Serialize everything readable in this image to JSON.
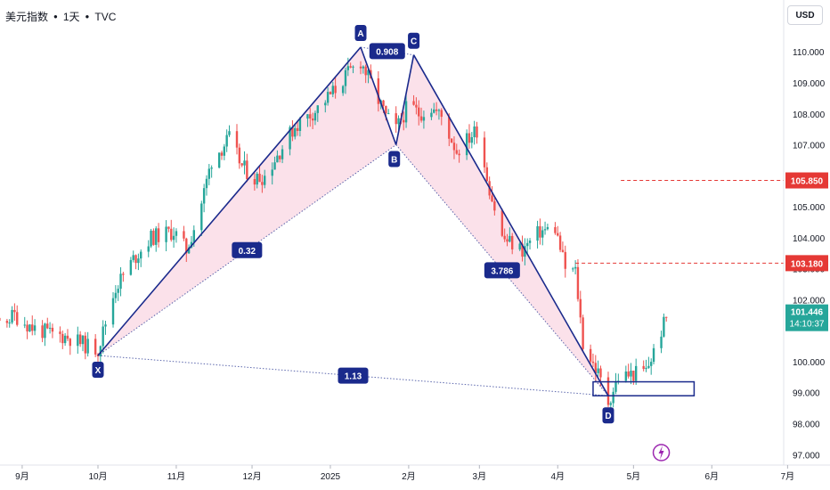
{
  "header": {
    "symbol": "美元指数",
    "interval": "1天",
    "source": "TVC"
  },
  "currency": "USD",
  "colors": {
    "up": "#26a69a",
    "down": "#ef5350",
    "pattern_line": "#1a2a8c",
    "pattern_fill": "#f8c8d8",
    "level": "#e53935",
    "label_bg": "#1a2a8c",
    "event": "#9c27b0"
  },
  "chart_data": {
    "type": "candlestick",
    "price_axis": {
      "ticks": [
        110.0,
        109.0,
        108.0,
        107.0,
        106.0,
        105.0,
        104.0,
        103.0,
        102.0,
        100.0,
        99.0,
        98.0,
        97.0
      ],
      "tick_labels": [
        "110.000",
        "109.000",
        "108.000",
        "107.000",
        "106.000",
        "105.000",
        "104.000",
        "103.000",
        "102.000",
        "100.000",
        "99.000",
        "98.000",
        "97.000"
      ]
    },
    "time_axis": {
      "tick_labels": [
        "9月",
        "10月",
        "11月",
        "12月",
        "2025",
        "2月",
        "3月",
        "4月",
        "5月",
        "6月",
        "7月"
      ]
    },
    "pattern": {
      "type": "harmonic-XABCD",
      "points": [
        {
          "name": "X",
          "date": "2024-10-01",
          "price": 100.2
        },
        {
          "name": "A",
          "date": "2025-01-13",
          "price": 110.15
        },
        {
          "name": "B",
          "date": "2025-01-27",
          "price": 107.0
        },
        {
          "name": "C",
          "date": "2025-02-03",
          "price": 109.9
        },
        {
          "name": "D",
          "date": "2025-04-21",
          "price": 98.9
        }
      ],
      "ratios": [
        {
          "leg": "XA-AB",
          "value": "0.32"
        },
        {
          "leg": "XA-AC",
          "value": "0.908"
        },
        {
          "leg": "BC-CD",
          "value": "3.786"
        },
        {
          "leg": "XA-XD",
          "value": "1.13"
        }
      ],
      "prz_box": {
        "start": "2025-04-15",
        "end": "2025-05-25",
        "low": 98.9,
        "high": 99.35
      }
    },
    "levels": [
      {
        "price": 105.85,
        "label": "105.850",
        "from": "2025-04-26"
      },
      {
        "price": 103.18,
        "label": "103.180",
        "from": "2025-04-08"
      }
    ],
    "last_price": {
      "value": "101.446",
      "countdown": "14:10:37"
    },
    "event_marker": {
      "date": "2025-05-12"
    },
    "candle_path": [
      {
        "d": "2024-08-01",
        "p": 101.8
      },
      {
        "d": "2024-08-08",
        "p": 101.6
      },
      {
        "d": "2024-08-15",
        "p": 101.3
      },
      {
        "d": "2024-08-22",
        "p": 101.2
      },
      {
        "d": "2024-08-29",
        "p": 101.5
      },
      {
        "d": "2024-09-05",
        "p": 101.1
      },
      {
        "d": "2024-09-12",
        "p": 100.9
      },
      {
        "d": "2024-09-19",
        "p": 100.8
      },
      {
        "d": "2024-09-27",
        "p": 100.5
      },
      {
        "d": "2024-10-01",
        "p": 100.4
      },
      {
        "d": "2024-10-08",
        "p": 102.4
      },
      {
        "d": "2024-10-15",
        "p": 103.3
      },
      {
        "d": "2024-10-22",
        "p": 104.0
      },
      {
        "d": "2024-10-31",
        "p": 104.2
      },
      {
        "d": "2024-11-05",
        "p": 103.6
      },
      {
        "d": "2024-11-10",
        "p": 104.8
      },
      {
        "d": "2024-11-15",
        "p": 106.5
      },
      {
        "d": "2024-11-22",
        "p": 107.2
      },
      {
        "d": "2024-11-27",
        "p": 106.3
      },
      {
        "d": "2024-12-02",
        "p": 105.9
      },
      {
        "d": "2024-12-06",
        "p": 106.0
      },
      {
        "d": "2024-12-12",
        "p": 106.8
      },
      {
        "d": "2024-12-18",
        "p": 107.6
      },
      {
        "d": "2024-12-26",
        "p": 108.1
      },
      {
        "d": "2025-01-02",
        "p": 108.7
      },
      {
        "d": "2025-01-08",
        "p": 109.3
      },
      {
        "d": "2025-01-13",
        "p": 109.7
      },
      {
        "d": "2025-01-18",
        "p": 108.8
      },
      {
        "d": "2025-01-23",
        "p": 107.9
      },
      {
        "d": "2025-01-27",
        "p": 107.5
      },
      {
        "d": "2025-02-01",
        "p": 108.3
      },
      {
        "d": "2025-02-05",
        "p": 108.0
      },
      {
        "d": "2025-02-10",
        "p": 108.2
      },
      {
        "d": "2025-02-14",
        "p": 107.9
      },
      {
        "d": "2025-02-20",
        "p": 106.8
      },
      {
        "d": "2025-02-28",
        "p": 107.5
      },
      {
        "d": "2025-03-05",
        "p": 105.6
      },
      {
        "d": "2025-03-10",
        "p": 104.0
      },
      {
        "d": "2025-03-18",
        "p": 103.6
      },
      {
        "d": "2025-03-25",
        "p": 104.2
      },
      {
        "d": "2025-03-31",
        "p": 104.3
      },
      {
        "d": "2025-04-04",
        "p": 103.0
      },
      {
        "d": "2025-04-08",
        "p": 102.9
      },
      {
        "d": "2025-04-11",
        "p": 100.6
      },
      {
        "d": "2025-04-17",
        "p": 99.6
      },
      {
        "d": "2025-04-21",
        "p": 98.7
      },
      {
        "d": "2025-04-25",
        "p": 99.5
      },
      {
        "d": "2025-05-01",
        "p": 99.6
      },
      {
        "d": "2025-05-06",
        "p": 99.7
      },
      {
        "d": "2025-05-09",
        "p": 100.3
      },
      {
        "d": "2025-05-12",
        "p": 101.0
      },
      {
        "d": "2025-05-14",
        "p": 101.4
      }
    ]
  }
}
